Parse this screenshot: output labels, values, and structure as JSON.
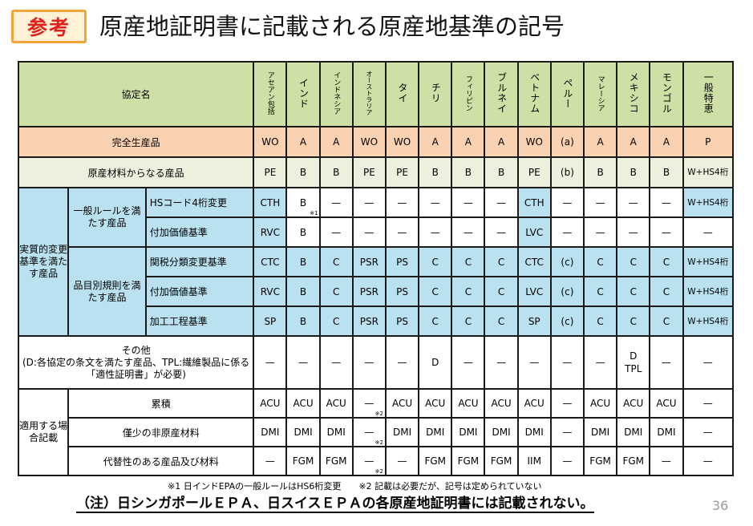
{
  "badge": "参考",
  "title": "原産地証明書に記載される原産地基準の記号",
  "header": {
    "agreement_label": "協定名",
    "countries": [
      "アセアン包括",
      "インド",
      "インドネシア",
      "オーストラリア",
      "タイ",
      "チリ",
      "フィリピン",
      "ブルネイ",
      "ベトナム",
      "ペルー",
      "マレーシア",
      "メキシコ",
      "モンゴル",
      "一般特恵"
    ]
  },
  "rows": {
    "wo": {
      "label": "完全生産品",
      "values": [
        "WO",
        "A",
        "A",
        "WO",
        "WO",
        "A",
        "A",
        "A",
        "WO",
        "(a)",
        "A",
        "A",
        "A",
        "P"
      ]
    },
    "pe": {
      "label": "原産材料からなる産品",
      "values": [
        "PE",
        "B",
        "B",
        "PE",
        "PE",
        "B",
        "B",
        "B",
        "PE",
        "(b)",
        "B",
        "B",
        "B",
        "W+HS4桁"
      ]
    },
    "substantial": {
      "label": "実質的変更基準を満たす産品",
      "general": {
        "label": "一般ルールを満たす産品",
        "hs4": {
          "label": "HSコード4桁変更",
          "values": [
            "CTH",
            "B",
            "—",
            "—",
            "—",
            "—",
            "—",
            "—",
            "CTH",
            "—",
            "—",
            "—",
            "—",
            "W+HS4桁"
          ],
          "note_b": "※1"
        },
        "va": {
          "label": "付加価値基準",
          "values": [
            "RVC",
            "B",
            "—",
            "—",
            "—",
            "—",
            "—",
            "—",
            "LVC",
            "—",
            "—",
            "—",
            "—",
            "—"
          ]
        }
      },
      "psr": {
        "label": "品目別規則を満たす産品",
        "ctc": {
          "label": "関税分類変更基準",
          "values": [
            "CTC",
            "B",
            "C",
            "PSR",
            "PS",
            "C",
            "C",
            "C",
            "CTC",
            "(c)",
            "C",
            "C",
            "C",
            "W+HS4桁"
          ]
        },
        "va": {
          "label": "付加価値基準",
          "values": [
            "RVC",
            "B",
            "C",
            "PSR",
            "PS",
            "C",
            "C",
            "C",
            "LVC",
            "(c)",
            "C",
            "C",
            "C",
            "W+HS4桁"
          ]
        },
        "sp": {
          "label": "加工工程基準",
          "values": [
            "SP",
            "B",
            "C",
            "PSR",
            "PS",
            "C",
            "C",
            "C",
            "SP",
            "(c)",
            "C",
            "C",
            "C",
            "W+HS4桁"
          ]
        }
      }
    },
    "other": {
      "label": "その他",
      "desc": "(D:各協定の条文を満たす産品、TPL:繊維製品に係る「適性証明書」が必要)",
      "values": [
        "—",
        "—",
        "—",
        "—",
        "—",
        "D",
        "—",
        "—",
        "—",
        "—",
        "—",
        "D\nTPL",
        "—",
        "—"
      ]
    },
    "optional": {
      "label": "適用する場合記載",
      "acu": {
        "label": "累積",
        "values": [
          "ACU",
          "ACU",
          "ACU",
          "—",
          "ACU",
          "ACU",
          "ACU",
          "ACU",
          "ACU",
          "—",
          "ACU",
          "ACU",
          "ACU",
          "—"
        ]
      },
      "dmi": {
        "label": "僅少の非原産材料",
        "values": [
          "DMI",
          "DMI",
          "DMI",
          "—",
          "DMI",
          "DMI",
          "DMI",
          "DMI",
          "DMI",
          "—",
          "DMI",
          "DMI",
          "DMI",
          "—"
        ]
      },
      "fgm": {
        "label": "代替性のある産品及び材料",
        "values": [
          "—",
          "FGM",
          "FGM",
          "—",
          "—",
          "FGM",
          "FGM",
          "FGM",
          "IIM",
          "—",
          "FGM",
          "FGM",
          "—",
          "—"
        ]
      },
      "note_aus": "※2"
    }
  },
  "footnote": "※1 日インドEPAの一般ルールはHS6桁変更　　※2 記載は必要だが、記号は定められていない",
  "bottom_note": "（注）日シンガポールＥＰＡ、日スイスＥＰＡの各原産地証明書には記載されない。",
  "page_number": "36",
  "colors": {
    "header": "#cfe0a6",
    "wo_row": "#fbd2b1",
    "pe_row": "#ebf1dd",
    "cyan": "#b9e1ef",
    "badge_border": "#f2a33a",
    "badge_text": "#e0201b"
  }
}
